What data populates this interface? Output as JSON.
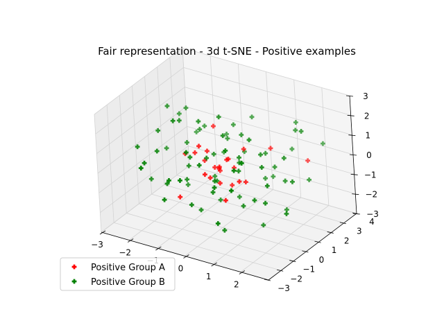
{
  "chart_data": {
    "type": "scatter",
    "title": "Fair representation - 3d t-SNE - Positive examples",
    "dimensions": 3,
    "marker": "plus",
    "grid": true,
    "legend_position": "bottom-left",
    "xlim": [
      -3,
      3
    ],
    "ylim": [
      -3,
      4
    ],
    "zlim": [
      -3,
      3
    ],
    "x_ticks": [
      "−3",
      "−2",
      "−1",
      "0",
      "1",
      "2"
    ],
    "y_ticks": [
      "−3",
      "−2",
      "−1",
      "0",
      "1",
      "2",
      "3",
      "4"
    ],
    "z_ticks": [
      "−3",
      "−2",
      "−1",
      "0",
      "1",
      "2",
      "3"
    ],
    "series": [
      {
        "name": "Positive Group A",
        "color": "#ff0000",
        "points": [
          [
            -0.5,
            0.2,
            0.6
          ],
          [
            0.1,
            0.4,
            0.3
          ],
          [
            -0.2,
            -0.3,
            -0.4
          ],
          [
            0.5,
            0.1,
            0.2
          ],
          [
            -0.8,
            0.6,
            -0.2
          ],
          [
            0.3,
            -0.6,
            0.5
          ],
          [
            -0.4,
            0.9,
            -0.7
          ],
          [
            0.8,
            0.3,
            -0.5
          ],
          [
            -0.1,
            -0.9,
            0.1
          ],
          [
            0.6,
            0.7,
            0.9
          ],
          [
            -0.6,
            -0.2,
            1.0
          ],
          [
            0.2,
            0.5,
            -1.0
          ],
          [
            -0.9,
            0.1,
            0.4
          ],
          [
            0.9,
            -0.4,
            -0.1
          ],
          [
            0.0,
            0.0,
            0.0
          ],
          [
            -0.3,
            0.3,
            -0.2
          ],
          [
            0.4,
            -0.1,
            0.7
          ],
          [
            1.2,
            1.5,
            0.8
          ],
          [
            -1.1,
            -0.8,
            -1.5
          ],
          [
            2.1,
            2.4,
            0.1
          ],
          [
            -0.7,
            1.2,
            1.3
          ],
          [
            0.7,
            -1.1,
            -0.8
          ],
          [
            -1.4,
            0.4,
            0.0
          ],
          [
            0.1,
            -0.2,
            -0.6
          ]
        ]
      },
      {
        "name": "Positive Group B",
        "color": "#008000",
        "points": [
          [
            -2.2,
            0.1,
            1.0
          ],
          [
            -1.8,
            -0.9,
            0.6
          ],
          [
            -2.5,
            1.3,
            -0.6
          ],
          [
            -1.5,
            2.2,
            0.5
          ],
          [
            -1.2,
            -1.8,
            -1.2
          ],
          [
            -0.9,
            0.5,
            1.8
          ],
          [
            -0.6,
            -0.3,
            -2.2
          ],
          [
            -0.3,
            1.9,
            1.2
          ],
          [
            0.0,
            -1.5,
            0.9
          ],
          [
            0.3,
            0.8,
            -1.7
          ],
          [
            0.6,
            -0.7,
            1.5
          ],
          [
            0.9,
            1.6,
            -0.9
          ],
          [
            1.2,
            -0.1,
            2.0
          ],
          [
            1.5,
            2.5,
            0.4
          ],
          [
            1.8,
            -1.2,
            -0.3
          ],
          [
            2.1,
            0.6,
            1.1
          ],
          [
            2.4,
            3.0,
            0.8
          ],
          [
            2.6,
            -0.5,
            -1.0
          ],
          [
            -2.0,
            -1.5,
            0.2
          ],
          [
            -1.6,
            0.9,
            -1.9
          ],
          [
            -1.0,
            2.8,
            0.0
          ],
          [
            -0.4,
            -2.2,
            0.3
          ],
          [
            0.2,
            2.3,
            1.6
          ],
          [
            0.8,
            -2.0,
            -1.5
          ],
          [
            1.4,
            0.2,
            -2.4
          ],
          [
            2.0,
            1.8,
            1.9
          ],
          [
            -2.4,
            -0.2,
            -1.4
          ],
          [
            -1.9,
            1.7,
            1.5
          ],
          [
            -1.3,
            -0.6,
            2.2
          ],
          [
            -0.7,
            1.1,
            -1.2
          ],
          [
            -0.1,
            0.4,
            2.4
          ],
          [
            0.5,
            -0.9,
            -2.5
          ],
          [
            1.1,
            1.3,
            0.6
          ],
          [
            1.7,
            -0.3,
            0.9
          ],
          [
            2.3,
            2.0,
            -0.6
          ],
          [
            -2.3,
            2.0,
            0.9
          ],
          [
            -1.7,
            -2.4,
            0.5
          ],
          [
            -1.1,
            0.0,
            -0.3
          ],
          [
            -0.5,
            -1.4,
            1.3
          ],
          [
            0.1,
            1.5,
            -0.4
          ],
          [
            0.7,
            0.1,
            0.8
          ],
          [
            1.3,
            -1.6,
            1.2
          ],
          [
            1.9,
            1.0,
            -1.8
          ],
          [
            2.5,
            0.3,
            0.2
          ],
          [
            -2.1,
            0.7,
            2.0
          ],
          [
            -1.4,
            -1.1,
            -0.8
          ],
          [
            -0.8,
            2.1,
            -0.5
          ],
          [
            -0.2,
            -0.5,
            0.7
          ],
          [
            0.4,
            1.0,
            1.4
          ],
          [
            1.0,
            -0.4,
            -1.3
          ],
          [
            1.6,
            2.7,
            1.7
          ],
          [
            2.2,
            -1.0,
            0.5
          ],
          [
            -2.6,
            -0.7,
            0.4
          ],
          [
            -1.3,
            1.4,
            0.8
          ],
          [
            -0.6,
            -1.0,
            -1.6
          ],
          [
            0.0,
            2.0,
            -0.1
          ],
          [
            0.6,
            -1.7,
            0.1
          ],
          [
            1.3,
            0.5,
            1.0
          ],
          [
            1.9,
            -0.6,
            -0.7
          ],
          [
            2.4,
            1.4,
            2.2
          ],
          [
            -2.0,
            2.6,
            -0.2
          ],
          [
            -1.5,
            0.3,
            1.7
          ],
          [
            -0.9,
            -2.0,
            0.0
          ],
          [
            -0.3,
            0.6,
            -2.0
          ],
          [
            0.3,
            -0.2,
            1.9
          ],
          [
            0.9,
            2.2,
            -1.1
          ],
          [
            1.5,
            -2.3,
            0.6
          ],
          [
            2.0,
            0.8,
            -0.2
          ],
          [
            -1.1,
            -0.2,
            -0.9
          ],
          [
            -0.5,
            0.7,
            0.2
          ],
          [
            0.1,
            -0.6,
            -0.3
          ],
          [
            0.6,
            0.3,
            0.4
          ],
          [
            -0.8,
            -0.5,
            0.5
          ],
          [
            0.4,
            0.9,
            0.0
          ],
          [
            -0.2,
            0.2,
            -0.8
          ],
          [
            0.8,
            -0.2,
            0.3
          ],
          [
            -1.6,
            1.0,
            0.2
          ],
          [
            1.6,
            0.9,
            0.3
          ],
          [
            -0.4,
            1.6,
            0.6
          ],
          [
            0.3,
            -1.2,
            -0.5
          ]
        ]
      }
    ]
  }
}
